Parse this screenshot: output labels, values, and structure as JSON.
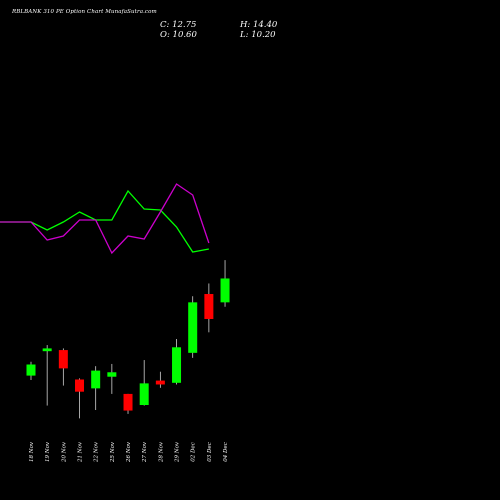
{
  "header": {
    "title": "RBLBANK 310 PE Option Chart MunafaSutra.com",
    "close": "C: 12.75",
    "open": "O: 10.60",
    "high": "H: 14.40",
    "low": "L: 10.20"
  },
  "colors": {
    "background": "#000000",
    "up": "#00ff00",
    "down": "#ff0000",
    "line_top": "#00ff00",
    "line_bottom": "#cc00cc",
    "wick": "#d0d0d0"
  },
  "chart_data": {
    "type": "candlestick",
    "grid": false,
    "categories": [
      "18 Nov",
      "19 Nov",
      "20 Nov",
      "21 Nov",
      "22 Nov",
      "25 Nov",
      "26 Nov",
      "27 Nov",
      "28 Nov",
      "29 Nov",
      "02 Dec",
      "03 Dec",
      "04 Dec"
    ],
    "candles": [
      {
        "date": "18 Nov",
        "open": 4.0,
        "high": 5.25,
        "low": 3.6,
        "close": 5.0
      },
      {
        "date": "19 Nov",
        "open": 6.2,
        "high": 6.75,
        "low": 1.3,
        "close": 6.45
      },
      {
        "date": "20 Nov",
        "open": 6.3,
        "high": 6.45,
        "low": 3.1,
        "close": 4.65
      },
      {
        "date": "21 Nov",
        "open": 3.65,
        "high": 3.75,
        "low": 0.15,
        "close": 2.55
      },
      {
        "date": "22 Nov",
        "open": 2.85,
        "high": 4.85,
        "low": 0.9,
        "close": 4.45
      },
      {
        "date": "25 Nov",
        "open": 3.9,
        "high": 5.05,
        "low": 2.35,
        "close": 4.3
      },
      {
        "date": "26 Nov",
        "open": 2.35,
        "high": 2.35,
        "low": 0.55,
        "close": 0.85
      },
      {
        "date": "27 Nov",
        "open": 1.35,
        "high": 5.4,
        "low": 1.3,
        "close": 3.3
      },
      {
        "date": "28 Nov",
        "open": 3.55,
        "high": 4.35,
        "low": 2.9,
        "close": 3.2
      },
      {
        "date": "29 Nov",
        "open": 3.35,
        "high": 7.3,
        "low": 3.2,
        "close": 6.55
      },
      {
        "date": "02 Dec",
        "open": 6.05,
        "high": 11.15,
        "low": 5.6,
        "close": 10.6
      },
      {
        "date": "03 Dec",
        "open": 11.35,
        "high": 12.3,
        "low": 7.9,
        "close": 9.1
      },
      {
        "date": "04 Dec",
        "open": 10.6,
        "high": 14.4,
        "low": 10.2,
        "close": 12.75
      }
    ],
    "lines": [
      {
        "color": "#00ff00",
        "values": [
          4.0,
          4.0,
          3.2,
          4.0,
          5.0,
          4.2,
          4.2,
          7.1,
          5.3,
          5.2,
          3.5,
          1.0,
          1.3
        ]
      },
      {
        "color": "#cc00cc",
        "values": [
          4.0,
          4.0,
          2.2,
          2.6,
          4.2,
          4.2,
          0.9,
          2.6,
          2.3,
          5.0,
          7.8,
          6.7,
          1.9
        ]
      }
    ]
  }
}
